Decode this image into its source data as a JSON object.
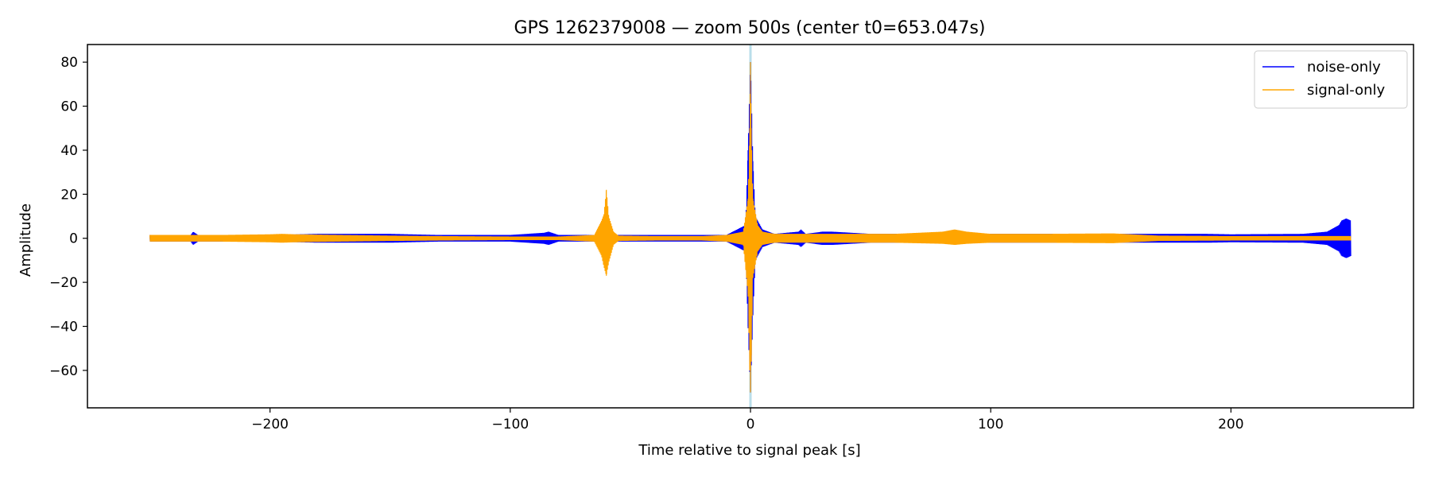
{
  "chart_data": {
    "type": "line",
    "title": "GPS 1262379008 — zoom 500s (center t0=653.047s)",
    "xlabel": "Time relative to signal peak [s]",
    "ylabel": "Amplitude",
    "xlim": [
      -276,
      276
    ],
    "ylim": [
      -77,
      88
    ],
    "x_ticks": [
      -200,
      -100,
      0,
      100,
      200
    ],
    "x_tick_labels": [
      "−200",
      "−100",
      "0",
      "100",
      "200"
    ],
    "y_ticks": [
      -60,
      -40,
      -20,
      0,
      20,
      40,
      60,
      80
    ],
    "y_tick_labels": [
      "−60",
      "−40",
      "−20",
      "0",
      "20",
      "40",
      "60",
      "80"
    ],
    "grid": false,
    "legend_position": "top-right",
    "marker_line": {
      "x": 0,
      "color": "#add8e6"
    },
    "colors": {
      "noise": "#0000ff",
      "signal": "#ffa500",
      "marker": "#add8e6"
    },
    "series": [
      {
        "name": "noise-only",
        "color": "#0000ff",
        "x": [
          -250,
          -233,
          -232,
          -230,
          -200,
          -180,
          -150,
          -130,
          -100,
          -86,
          -84,
          -80,
          -70,
          -50,
          -30,
          -10,
          -2,
          -1,
          0,
          1,
          2,
          5,
          10,
          20,
          21,
          23,
          30,
          34,
          50,
          70,
          100,
          130,
          150,
          180,
          190,
          200,
          230,
          240,
          245,
          246,
          248,
          250
        ],
        "upper": [
          1.5,
          1.5,
          3,
          1.5,
          1.5,
          2,
          2,
          1.5,
          1.5,
          2.5,
          3,
          1.5,
          1.5,
          1.5,
          1.5,
          1.5,
          6,
          40,
          80,
          35,
          10,
          4,
          2,
          3,
          4,
          2,
          3,
          3,
          2,
          2,
          2,
          2,
          2,
          2,
          2,
          1.8,
          2,
          3,
          6,
          8,
          9,
          8
        ],
        "lower": [
          -1.5,
          -1.5,
          -3,
          -1.5,
          -1.5,
          -2,
          -2,
          -1.5,
          -1.5,
          -2.5,
          -3,
          -1.5,
          -1.5,
          -1.5,
          -1.5,
          -1.5,
          -6,
          -40,
          -70,
          -35,
          -10,
          -4,
          -2,
          -3,
          -4,
          -2,
          -3,
          -3,
          -2,
          -2,
          -2,
          -2,
          -2,
          -2,
          -2,
          -1.8,
          -2,
          -3,
          -6,
          -8,
          -9,
          -8
        ]
      },
      {
        "name": "signal-only",
        "color": "#ffa500",
        "x": [
          -250,
          -220,
          -200,
          -195,
          -190,
          -170,
          -150,
          -130,
          -100,
          -80,
          -65,
          -62,
          -61,
          -60,
          -59,
          -57,
          -55,
          -40,
          -20,
          -10,
          -3,
          -1,
          -0.3,
          0,
          0.3,
          1,
          3,
          5,
          10,
          30,
          60,
          80,
          85,
          90,
          100,
          120,
          150,
          151,
          170,
          200,
          220,
          240,
          250
        ],
        "upper": [
          1.5,
          1.5,
          1.8,
          2,
          1.8,
          1.5,
          1.2,
          1,
          0.8,
          0.8,
          1.5,
          8,
          11,
          22,
          10,
          3,
          1.2,
          1,
          1,
          1.5,
          3,
          18,
          50,
          80,
          50,
          18,
          6,
          3,
          2,
          2,
          2,
          3,
          4,
          3,
          2,
          2,
          2.2,
          2.2,
          1.2,
          1,
          1,
          1,
          1
        ],
        "lower": [
          -1.5,
          -1.5,
          -1.8,
          -2,
          -1.8,
          -1.5,
          -1.2,
          -1,
          -0.8,
          -0.8,
          -1.5,
          -8,
          -13,
          -17,
          -11,
          -3,
          -1.2,
          -1,
          -1,
          -1.5,
          -3,
          -25,
          -60,
          -70,
          -56,
          -18,
          -6,
          -3,
          -2,
          -2,
          -2,
          -2.5,
          -3,
          -2.5,
          -2,
          -2,
          -2.2,
          -2.2,
          -1.2,
          -1,
          -1,
          -1,
          -1
        ]
      }
    ]
  }
}
